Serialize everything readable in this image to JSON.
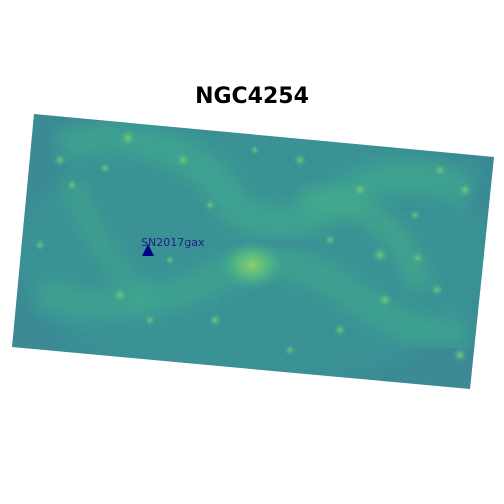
{
  "title": "NGC4254",
  "marker": {
    "label": "SN2017gax",
    "color": "#00008b",
    "label_color": "#1a237e"
  },
  "colors": {
    "background": "#ffffff",
    "image_base": "#2f7e8c",
    "image_mid": "#2e9c87",
    "image_bright": "#57c16a",
    "image_core": "#8fd05a"
  }
}
